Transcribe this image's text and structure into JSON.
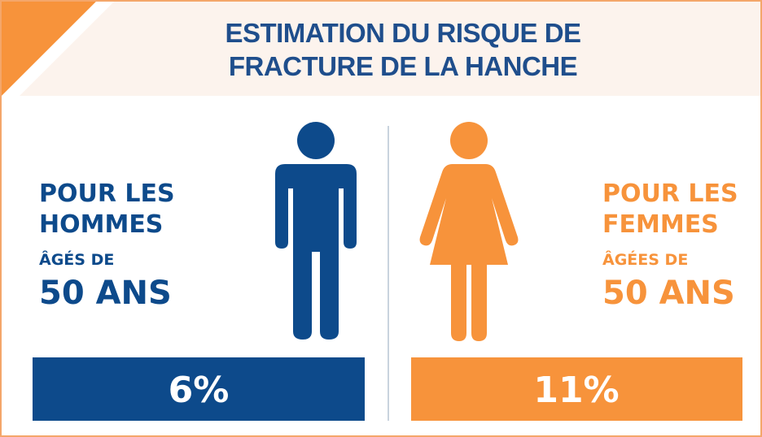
{
  "header": {
    "title_lines": [
      "ESTIMATION DU RISQUE DE",
      "FRACTURE DE LA HANCHE"
    ]
  },
  "panels": [
    {
      "lines": [
        "POUR LES",
        "HOMMES"
      ],
      "age_prefix": "ÂGÉS DE",
      "age": "50 ANS",
      "risk": "6%"
    },
    {
      "lines": [
        "POUR LES",
        "FEMMES"
      ],
      "age_prefix": "ÂGÉES DE",
      "age": "50 ANS",
      "risk": "11%"
    }
  ]
}
